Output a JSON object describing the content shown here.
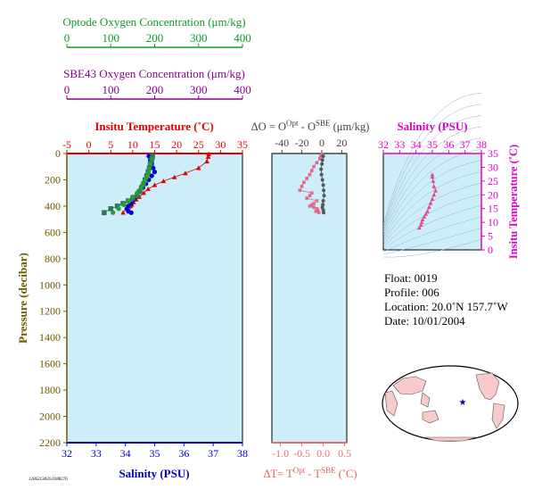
{
  "colors": {
    "panel_bg": "#cdeef9",
    "optode": "#109a2a",
    "sbe43": "#8b008b",
    "temperature": "#e00000",
    "salinity": "#0000cc",
    "pressure_axis": "#6b5a00",
    "delta_t": "#e07070",
    "ts_axis": "#e000c8",
    "land": "#f9caca"
  },
  "optode_axis": {
    "title": "Optode Oxygen Concentration (μm/kg)",
    "ticks": [
      "0",
      "100",
      "200",
      "300",
      "400"
    ]
  },
  "sbe43_axis": {
    "title": "SBE43 Oxygen Concentration (μm/kg)",
    "ticks": [
      "0",
      "100",
      "200",
      "300",
      "400"
    ]
  },
  "main_panel": {
    "top_title": "Insitu Temperature (˚C)",
    "top_ticks": [
      "-5",
      "0",
      "5",
      "10",
      "15",
      "20",
      "25",
      "30",
      "35"
    ],
    "left_title": "Pressure (decibar)",
    "left_ticks": [
      "0",
      "200",
      "400",
      "600",
      "800",
      "1000",
      "1200",
      "1400",
      "1600",
      "1800",
      "2000",
      "2200"
    ],
    "bottom_title": "Salinity (PSU)",
    "bottom_ticks": [
      "32",
      "33",
      "34",
      "35",
      "36",
      "37",
      "38"
    ]
  },
  "delta_panel": {
    "top_title": "ΔO = O",
    "top_sup1": "Opt",
    "top_mid": " - O",
    "top_sup2": "SBE",
    "top_unit": " (μm/kg)",
    "top_ticks": [
      "-40",
      "-20",
      "0",
      "20"
    ],
    "bottom_title": "ΔT= T",
    "bottom_sup1": "Opt",
    "bottom_mid": " - T",
    "bottom_sup2": "SBE",
    "bottom_unit": " (˚C)",
    "bottom_ticks": [
      "-1.0",
      "-0.5",
      "0.0",
      "0.5"
    ]
  },
  "ts_panel": {
    "top_title": "Salinity (PSU)",
    "top_ticks": [
      "32",
      "33",
      "34",
      "35",
      "36",
      "37",
      "38"
    ],
    "right_title": "Insitu Temperature (˚C)",
    "right_ticks": [
      "0",
      "5",
      "10",
      "15",
      "20",
      "25",
      "30",
      "35"
    ]
  },
  "info": {
    "float": "Float:  0019",
    "profile": "Profile:  006",
    "location": "Location:  20.0˚N  157.7˚W",
    "date": "Date:  10/01/2004"
  },
  "footer_id": "1206213826.0388276",
  "chart_data": {
    "type": "scatter",
    "panels": [
      {
        "name": "profile",
        "y_axis": "Pressure (decibar)",
        "ylim": [
          0,
          2200
        ],
        "y_inverted": true,
        "series": [
          {
            "name": "Insitu Temperature (˚C)",
            "axis": "top",
            "xlim": [
              -5,
              35
            ],
            "marker": "triangle",
            "x": [
              27.3,
              27.2,
              26.9,
              25.0,
              22.0,
              19.5,
              17.0,
              15.0,
              13.5,
              12.5,
              11.5,
              10.8,
              10.2,
              9.8,
              9.5,
              9.1,
              8.6,
              7.8
            ],
            "y": [
              5,
              25,
              60,
              110,
              150,
              180,
              210,
              240,
              270,
              300,
              330,
              350,
              370,
              390,
              400,
              410,
              420,
              450
            ]
          },
          {
            "name": "Salinity (PSU)",
            "axis": "bottom",
            "xlim": [
              32,
              38
            ],
            "marker": "circle",
            "x": [
              34.8,
              34.85,
              34.9,
              34.95,
              35.0,
              34.9,
              34.8,
              34.7,
              34.6,
              34.5,
              34.4,
              34.3,
              34.2,
              34.1,
              34.05,
              34.1,
              34.2
            ],
            "y": [
              20,
              50,
              80,
              110,
              140,
              170,
              200,
              230,
              260,
              290,
              320,
              350,
              380,
              400,
              420,
              440,
              450
            ]
          },
          {
            "name": "Optode Oxygen",
            "axis": "optode",
            "xlim": [
              0,
              400
            ],
            "marker": "square",
            "x": [
              195,
              193,
              190,
              188,
              185,
              182,
              178,
              175,
              170,
              165,
              160,
              150,
              140,
              128,
              115,
              100,
              85
            ],
            "y": [
              20,
              50,
              80,
              110,
              140,
              170,
              200,
              230,
              260,
              290,
              320,
              340,
              360,
              380,
              400,
              420,
              450
            ]
          },
          {
            "name": "SBE43 Oxygen",
            "axis": "sbe43",
            "xlim": [
              0,
              400
            ],
            "marker": "circle",
            "x": [
              195,
              190,
              187,
              185,
              182,
              178,
              172,
              168,
              160,
              150,
              140,
              130,
              118,
              105
            ],
            "y": [
              40,
              80,
              120,
              150,
              180,
              210,
              240,
              270,
              300,
              330,
              360,
              390,
              420,
              450
            ]
          }
        ]
      },
      {
        "name": "delta",
        "y_axis": "Pressure (decibar)",
        "ylim": [
          0,
          2200
        ],
        "y_inverted": true,
        "series": [
          {
            "name": "ΔO",
            "axis": "top",
            "xlim": [
              -50,
              25
            ],
            "marker": "square",
            "x": [
              0,
              -1,
              -2,
              -5,
              -8,
              -10,
              -12,
              -15,
              -18,
              -20,
              -22,
              -10,
              -12,
              -15,
              -5,
              -8,
              -10,
              -12,
              -8,
              -5,
              -4,
              -6,
              -3
            ],
            "y": [
              5,
              20,
              40,
              70,
              100,
              130,
              160,
              190,
              220,
              250,
              280,
              300,
              320,
              340,
              360,
              380,
              390,
              400,
              410,
              420,
              430,
              440,
              450
            ]
          },
          {
            "name": "ΔT",
            "axis": "bottom",
            "xlim": [
              -1.2,
              0.55
            ],
            "marker": "circle",
            "x": [
              0.0,
              -0.02,
              -0.03,
              -0.05,
              -0.04,
              -0.02,
              0.0,
              0.01,
              0.02,
              0.0,
              -0.01,
              -0.02,
              0.0,
              0.01
            ],
            "y": [
              20,
              50,
              80,
              120,
              160,
              200,
              240,
              280,
              320,
              360,
              390,
              410,
              430,
              450
            ]
          }
        ]
      },
      {
        "name": "ts",
        "x_axis": "Salinity (PSU)",
        "xlim": [
          32,
          38
        ],
        "y_axis": "Insitu Temperature (˚C)",
        "ylim": [
          0,
          35
        ],
        "series": [
          {
            "name": "T-S",
            "marker": "triangle",
            "x": [
              35.0,
              35.0,
              35.05,
              35.1,
              35.2,
              35.1,
              35.0,
              34.9,
              34.8,
              34.7,
              34.6,
              34.5,
              34.4,
              34.35,
              34.3,
              34.2
            ],
            "y": [
              27.3,
              26.5,
              25.0,
              23.0,
              21.5,
              20.0,
              18.5,
              17.0,
              15.5,
              14.0,
              13.0,
              12.0,
              11.0,
              10.0,
              9.0,
              8.0
            ]
          }
        ]
      }
    ]
  }
}
